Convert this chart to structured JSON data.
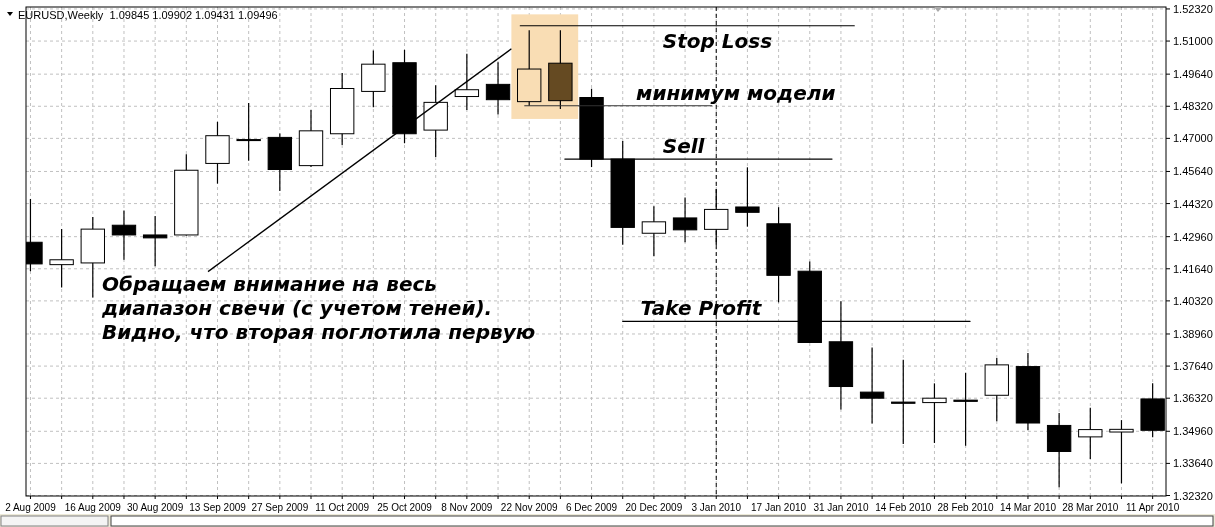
{
  "chart_data": {
    "type": "candlestick",
    "title": "EURUSD,Weekly  1.09845 1.09902 1.09431 1.09496",
    "annotations": [
      {
        "text": "Обращаем внимание на весь\nдиапазон свечи (с учетом теней).\nВидно, что вторая поглотила первую",
        "x": "2009-11-18",
        "y": 1.5068
      },
      {
        "text": "Stop Loss",
        "x": "2009-12-22",
        "y": 1.5163
      },
      {
        "text": "минимум модели",
        "x": "2009-12-16",
        "y": 1.4834
      },
      {
        "text": "Sell",
        "x": "2009-12-22",
        "y": 1.4615
      },
      {
        "text": "Take Profit",
        "x": "2009-12-17",
        "y": 1.3948
      }
    ],
    "x": [
      "2009-08-02",
      "2009-08-09",
      "2009-08-16",
      "2009-08-23",
      "2009-08-30",
      "2009-09-06",
      "2009-09-13",
      "2009-09-20",
      "2009-09-27",
      "2009-10-04",
      "2009-10-11",
      "2009-10-18",
      "2009-10-25",
      "2009-11-01",
      "2009-11-08",
      "2009-11-15",
      "2009-11-22",
      "2009-11-29",
      "2009-12-06",
      "2009-12-13",
      "2009-12-20",
      "2009-12-27",
      "2010-01-03",
      "2010-01-10",
      "2010-01-17",
      "2010-01-24",
      "2010-01-31",
      "2010-02-07",
      "2010-02-14",
      "2010-02-21",
      "2010-02-28",
      "2010-03-07",
      "2010-03-14",
      "2010-03-21",
      "2010-03-28",
      "2010-04-04",
      "2010-04-11"
    ],
    "series": [
      {
        "ohlc": [
          [
            1.4273,
            1.4451,
            1.4154,
            1.4184
          ],
          [
            1.4181,
            1.4327,
            1.4087,
            1.4201
          ],
          [
            1.4188,
            1.4377,
            1.4046,
            1.4327
          ],
          [
            1.4343,
            1.4404,
            1.4201,
            1.4303
          ],
          [
            1.4303,
            1.4381,
            1.4174,
            1.4291
          ],
          [
            1.4303,
            1.4635,
            1.4301,
            1.4569
          ],
          [
            1.4597,
            1.4768,
            1.4514,
            1.4711
          ],
          [
            1.4695,
            1.4845,
            1.4608,
            1.4693
          ],
          [
            1.4704,
            1.472,
            1.4484,
            1.4572
          ],
          [
            1.4588,
            1.4817,
            1.4582,
            1.4731
          ],
          [
            1.4719,
            1.4969,
            1.4673,
            1.4905
          ],
          [
            1.4893,
            1.5061,
            1.4828,
            1.5005
          ],
          [
            1.5011,
            1.5064,
            1.468,
            1.4719
          ],
          [
            1.4734,
            1.4918,
            1.4623,
            1.4848
          ],
          [
            1.4872,
            1.5048,
            1.4817,
            1.49
          ],
          [
            1.4922,
            1.5013,
            1.4798,
            1.4859
          ],
          [
            1.4851,
            1.5144,
            1.4834,
            1.4985
          ],
          [
            1.5009,
            1.5144,
            1.4821,
            1.4855
          ],
          [
            1.4868,
            1.4904,
            1.4582,
            1.4615
          ],
          [
            1.4615,
            1.4689,
            1.4263,
            1.4334
          ],
          [
            1.431,
            1.4421,
            1.4215,
            1.4357
          ],
          [
            1.4373,
            1.4457,
            1.4273,
            1.4324
          ],
          [
            1.4326,
            1.4491,
            1.4262,
            1.4408
          ],
          [
            1.4418,
            1.4581,
            1.4337,
            1.4396
          ],
          [
            1.4349,
            1.4417,
            1.4026,
            1.4137
          ],
          [
            1.4154,
            1.4194,
            1.3861,
            1.3861
          ],
          [
            1.3864,
            1.403,
            1.3586,
            1.368
          ],
          [
            1.3657,
            1.384,
            1.3528,
            1.3632
          ],
          [
            1.3616,
            1.379,
            1.3444,
            1.3611
          ],
          [
            1.3614,
            1.3693,
            1.3448,
            1.3632
          ],
          [
            1.3624,
            1.3737,
            1.3437,
            1.3619
          ],
          [
            1.3644,
            1.3797,
            1.3537,
            1.3769
          ],
          [
            1.3762,
            1.3818,
            1.35,
            1.353
          ],
          [
            1.352,
            1.3571,
            1.3266,
            1.3413
          ],
          [
            1.3473,
            1.3593,
            1.3382,
            1.3503
          ],
          [
            1.3493,
            1.3542,
            1.3282,
            1.3504
          ],
          [
            1.3629,
            1.3693,
            1.3472,
            1.35
          ]
        ],
        "colors": [
          "#000000",
          "#ffffff",
          "#ffffff",
          "#000000",
          "#000000",
          "#ffffff",
          "#ffffff",
          "#000000",
          "#000000",
          "#ffffff",
          "#ffffff",
          "#ffffff",
          "#000000",
          "#ffffff",
          "#ffffff",
          "#000000",
          "#f9ddb4",
          "#654a22",
          "#000000",
          "#000000",
          "#ffffff",
          "#000000",
          "#ffffff",
          "#000000",
          "#000000",
          "#000000",
          "#000000",
          "#000000",
          "#000000",
          "#ffffff",
          "#000000",
          "#ffffff",
          "#000000",
          "#000000",
          "#ffffff",
          "#ffffff",
          "#000000"
        ]
      },
      {
        "type": "line",
        "x": [
          "2009-11-20",
          "2010-02-03"
        ],
        "values": [
          1.5163,
          1.5163
        ],
        "color": "#000000"
      },
      {
        "type": "line",
        "x": [
          "2009-11-21",
          "2010-01-02"
        ],
        "values": [
          1.4834,
          1.4834
        ],
        "color": "#333333"
      },
      {
        "type": "line",
        "x": [
          "2009-11-30",
          "2010-01-29"
        ],
        "values": [
          1.4615,
          1.4615
        ],
        "color": "#000000"
      },
      {
        "type": "line",
        "x": [
          "2009-12-13",
          "2010-03-01"
        ],
        "values": [
          1.3948,
          1.3948
        ],
        "color": "#000000"
      }
    ],
    "xlim": [
      "2009-08-01",
      "2010-04-14"
    ],
    "xticks": [
      {
        "value": "2009-08-02",
        "label": "2 Aug 2009"
      },
      {
        "value": "2009-08-09",
        "label": null
      },
      {
        "value": "2009-08-16",
        "label": "16 Aug 2009"
      },
      {
        "value": "2009-08-23",
        "label": null
      },
      {
        "value": "2009-08-30",
        "label": "30 Aug 2009"
      },
      {
        "value": "2009-09-06",
        "label": null
      },
      {
        "value": "2009-09-13",
        "label": "13 Sep 2009"
      },
      {
        "value": "2009-09-20",
        "label": null
      },
      {
        "value": "2009-09-27",
        "label": "27 Sep 2009"
      },
      {
        "value": "2009-10-04",
        "label": null
      },
      {
        "value": "2009-10-11",
        "label": "11 Oct 2009"
      },
      {
        "value": "2009-10-18",
        "label": null
      },
      {
        "value": "2009-10-25",
        "label": "25 Oct 2009"
      },
      {
        "value": "2009-11-01",
        "label": null
      },
      {
        "value": "2009-11-08",
        "label": "8 Nov 2009"
      },
      {
        "value": "2009-11-15",
        "label": null
      },
      {
        "value": "2009-11-22",
        "label": "22 Nov 2009"
      },
      {
        "value": "2009-11-29",
        "label": null
      },
      {
        "value": "2009-12-06",
        "label": "6 Dec 2009"
      },
      {
        "value": "2009-12-13",
        "label": null
      },
      {
        "value": "2009-12-20",
        "label": "20 Dec 2009"
      },
      {
        "value": "2009-12-27",
        "label": null
      },
      {
        "value": "2010-01-03",
        "label": "3 Jan 2010"
      },
      {
        "value": "2010-01-10",
        "label": null
      },
      {
        "value": "2010-01-17",
        "label": "17 Jan 2010"
      },
      {
        "value": "2010-01-24",
        "label": null
      },
      {
        "value": "2010-01-31",
        "label": "31 Jan 2010"
      },
      {
        "value": "2010-02-07",
        "label": null
      },
      {
        "value": "2010-02-14",
        "label": "14 Feb 2010"
      },
      {
        "value": "2010-02-21",
        "label": null
      },
      {
        "value": "2010-02-28",
        "label": "28 Feb 2010"
      },
      {
        "value": "2010-03-07",
        "label": null
      },
      {
        "value": "2010-03-14",
        "label": "14 Mar 2010"
      },
      {
        "value": "2010-03-21",
        "label": null
      },
      {
        "value": "2010-03-28",
        "label": "28 Mar 2010"
      },
      {
        "value": "2010-04-04",
        "label": null
      },
      {
        "value": "2010-04-11",
        "label": "11 Apr 2010"
      }
    ],
    "ylim": [
      1.323,
      1.524
    ],
    "yticks": [
      {
        "value": 1.3232,
        "label": "1.32320"
      },
      {
        "value": 1.3364,
        "label": "1.33640"
      },
      {
        "value": 1.3496,
        "label": "1.34960"
      },
      {
        "value": 1.3632,
        "label": "1.36320"
      },
      {
        "value": 1.3764,
        "label": "1.37640"
      },
      {
        "value": 1.3896,
        "label": "1.38960"
      },
      {
        "value": 1.4032,
        "label": "1.40320"
      },
      {
        "value": 1.4164,
        "label": "1.41640"
      },
      {
        "value": 1.4296,
        "label": "1.42960"
      },
      {
        "value": 1.4432,
        "label": "1.44320"
      },
      {
        "value": 1.4564,
        "label": "1.45640"
      },
      {
        "value": 1.47,
        "label": "1.47000"
      },
      {
        "value": 1.4832,
        "label": "1.48320"
      },
      {
        "value": 1.4964,
        "label": "1.49640"
      },
      {
        "value": 1.51,
        "label": "1.51000"
      },
      {
        "value": 1.5232,
        "label": "1.52320"
      }
    ],
    "grid": true,
    "ref_lines": [
      {
        "axis": "x",
        "value": "2010-01-03",
        "color": "#000000",
        "line_style": "dashed"
      }
    ],
    "bands": [
      {
        "axis": "x",
        "from": "2009-11-18",
        "to": "2009-12-03",
        "color": "#f9ddb4"
      }
    ]
  }
}
